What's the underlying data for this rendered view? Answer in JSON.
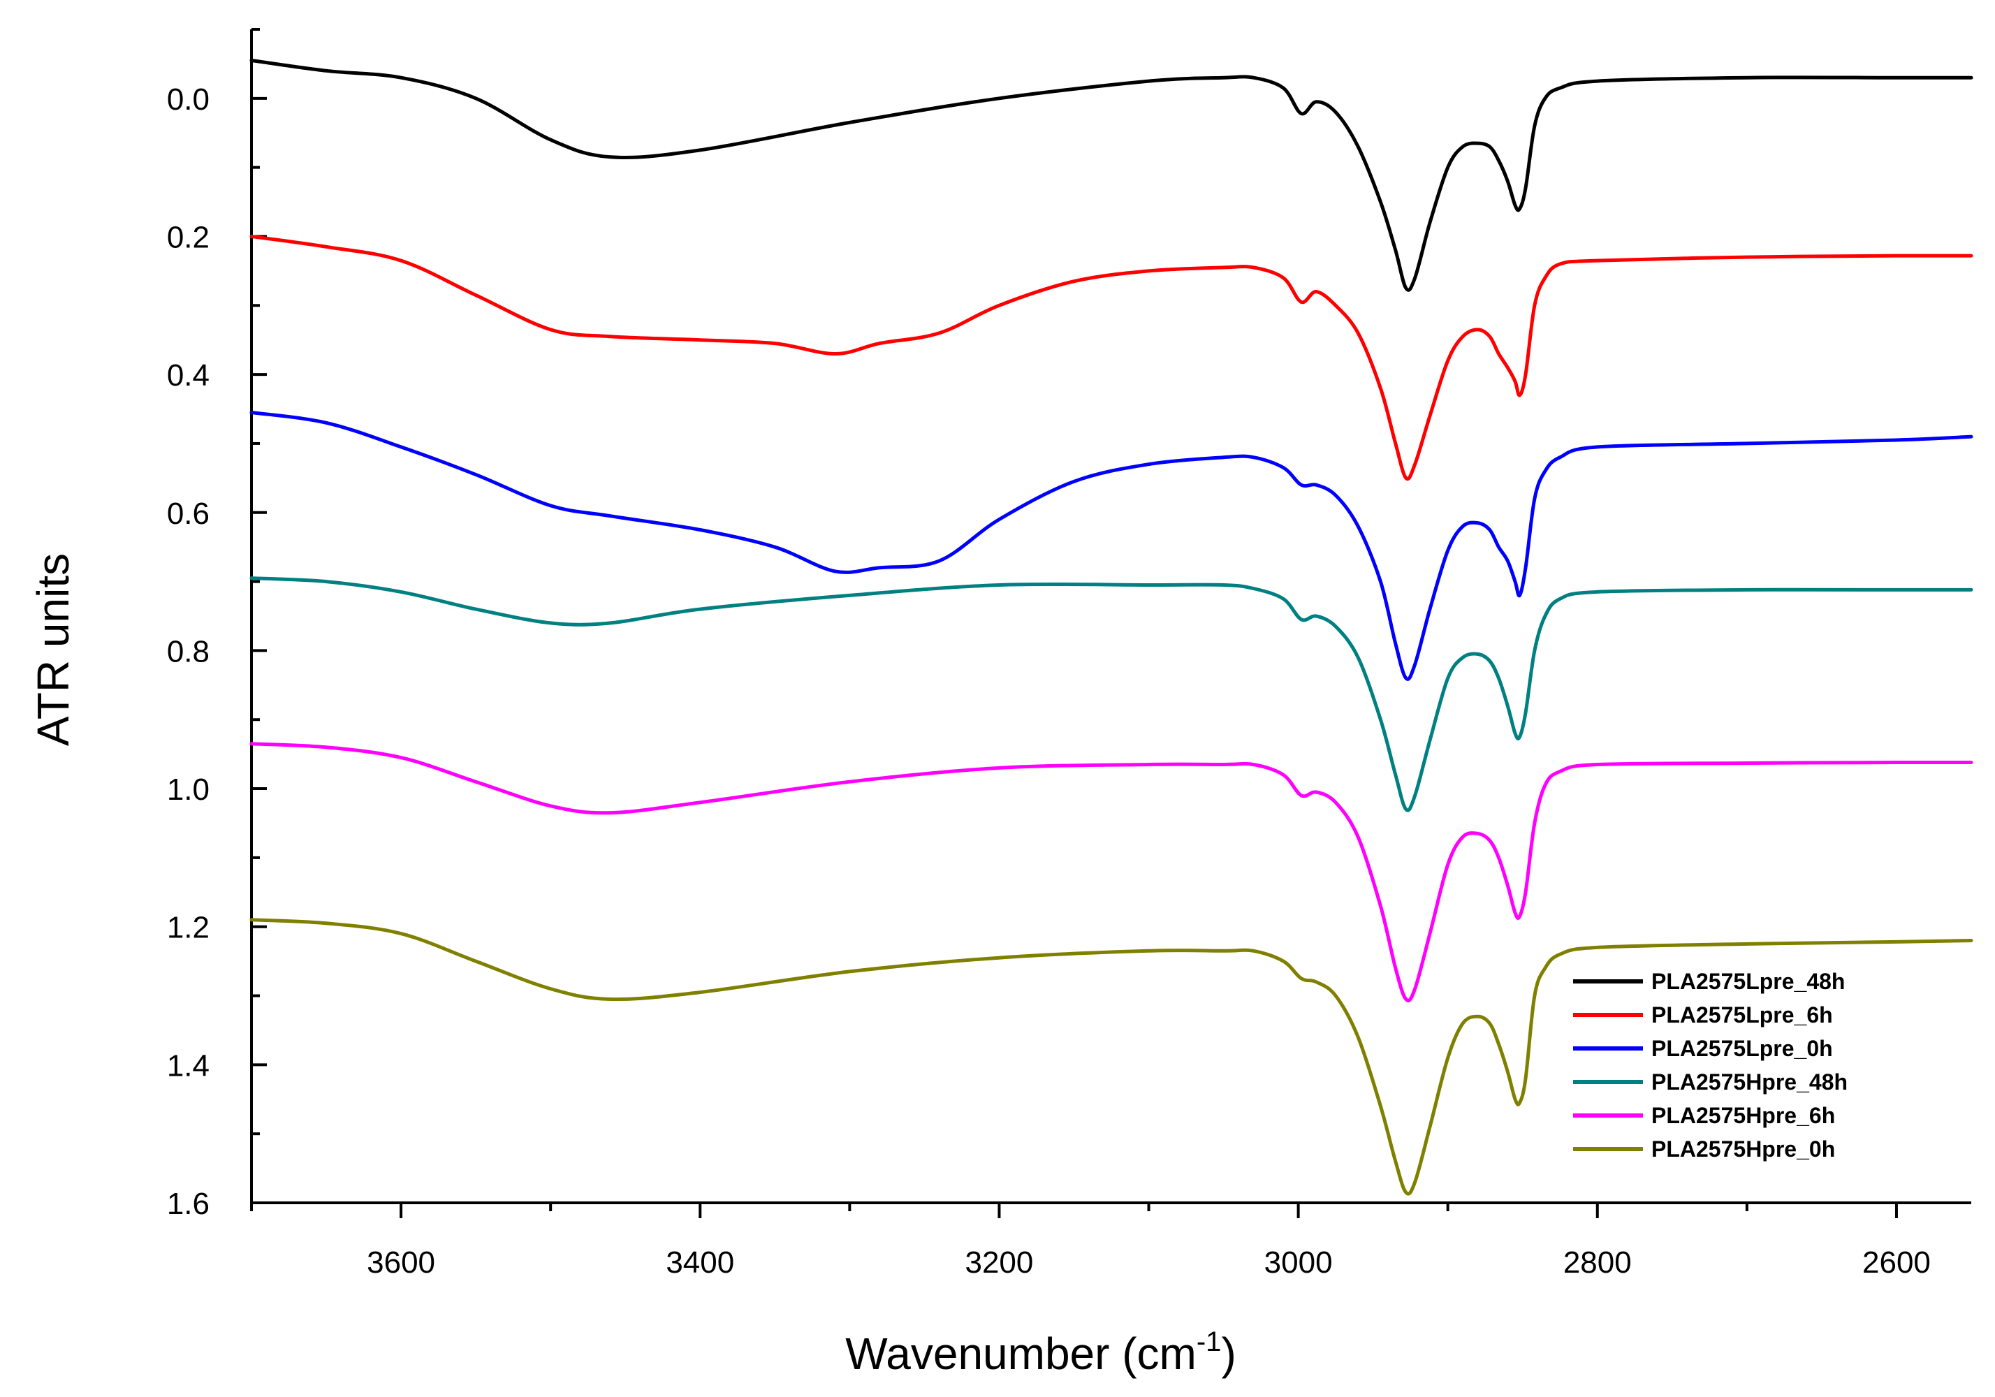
{
  "chart_data": {
    "type": "line",
    "title": "",
    "xlabel": "Wavenumber (cm",
    "xlabel_superscript": "-1",
    "xlabel_close": ")",
    "ylabel": "ATR units",
    "xlim": [
      3700,
      2550
    ],
    "ylim": [
      1.6,
      -0.1
    ],
    "y_inverted": true,
    "x_reversed": true,
    "x_ticks": [
      3600,
      3400,
      3200,
      3000,
      2800,
      2600
    ],
    "x_tick_labels": [
      "3600",
      "3400",
      "3200",
      "3000",
      "2800",
      "2600"
    ],
    "y_ticks": [
      0.0,
      0.2,
      0.4,
      0.6,
      0.8,
      1.0,
      1.2,
      1.4,
      1.6
    ],
    "y_tick_labels": [
      "0.0",
      "0.2",
      "0.4",
      "0.6",
      "0.8",
      "1.0",
      "1.2",
      "1.4",
      "1.6"
    ],
    "legend_position": "bottom-right",
    "series": [
      {
        "name": "PLA2575Lpre_48h",
        "color": "#000000",
        "x": [
          3700,
          3650,
          3600,
          3550,
          3500,
          3460,
          3400,
          3300,
          3200,
          3100,
          3050,
          3030,
          3010,
          2998,
          2988,
          2975,
          2960,
          2945,
          2935,
          2928,
          2922,
          2912,
          2900,
          2890,
          2880,
          2872,
          2866,
          2860,
          2855,
          2852,
          2848,
          2842,
          2835,
          2825,
          2800,
          2700,
          2600,
          2550
        ],
        "y": [
          -0.055,
          -0.04,
          -0.03,
          0.0,
          0.06,
          0.085,
          0.075,
          0.035,
          0.0,
          -0.025,
          -0.03,
          -0.03,
          -0.015,
          0.022,
          0.005,
          0.02,
          0.07,
          0.15,
          0.22,
          0.275,
          0.26,
          0.18,
          0.1,
          0.07,
          0.065,
          0.07,
          0.09,
          0.12,
          0.155,
          0.16,
          0.13,
          0.04,
          0.0,
          -0.015,
          -0.025,
          -0.03,
          -0.03,
          -0.03
        ]
      },
      {
        "name": "PLA2575Lpre_6h",
        "color": "#ff0000",
        "x": [
          3700,
          3650,
          3600,
          3550,
          3500,
          3460,
          3400,
          3350,
          3310,
          3280,
          3240,
          3200,
          3150,
          3100,
          3050,
          3030,
          3010,
          2998,
          2988,
          2975,
          2960,
          2945,
          2935,
          2928,
          2922,
          2912,
          2900,
          2890,
          2880,
          2872,
          2866,
          2860,
          2855,
          2852,
          2848,
          2842,
          2835,
          2825,
          2800,
          2700,
          2600,
          2550
        ],
        "y": [
          0.2,
          0.215,
          0.235,
          0.285,
          0.335,
          0.345,
          0.35,
          0.355,
          0.37,
          0.355,
          0.34,
          0.3,
          0.265,
          0.25,
          0.245,
          0.245,
          0.26,
          0.295,
          0.28,
          0.3,
          0.34,
          0.42,
          0.5,
          0.55,
          0.53,
          0.46,
          0.38,
          0.345,
          0.335,
          0.345,
          0.37,
          0.39,
          0.41,
          0.43,
          0.4,
          0.3,
          0.26,
          0.24,
          0.235,
          0.23,
          0.228,
          0.228
        ]
      },
      {
        "name": "PLA2575Lpre_0h",
        "color": "#0000ff",
        "x": [
          3700,
          3650,
          3600,
          3550,
          3500,
          3460,
          3400,
          3350,
          3310,
          3280,
          3240,
          3200,
          3150,
          3100,
          3050,
          3030,
          3010,
          2998,
          2988,
          2975,
          2960,
          2945,
          2935,
          2928,
          2922,
          2912,
          2900,
          2890,
          2880,
          2872,
          2866,
          2860,
          2855,
          2852,
          2848,
          2842,
          2835,
          2825,
          2800,
          2700,
          2600,
          2550
        ],
        "y": [
          0.455,
          0.47,
          0.505,
          0.545,
          0.59,
          0.605,
          0.625,
          0.65,
          0.685,
          0.68,
          0.67,
          0.61,
          0.555,
          0.53,
          0.52,
          0.52,
          0.535,
          0.56,
          0.56,
          0.575,
          0.62,
          0.7,
          0.79,
          0.84,
          0.82,
          0.74,
          0.655,
          0.62,
          0.615,
          0.625,
          0.65,
          0.67,
          0.7,
          0.72,
          0.68,
          0.58,
          0.54,
          0.52,
          0.505,
          0.5,
          0.495,
          0.49
        ]
      },
      {
        "name": "PLA2575Hpre_48h",
        "color": "#008080",
        "x": [
          3700,
          3650,
          3600,
          3550,
          3500,
          3460,
          3400,
          3300,
          3200,
          3100,
          3050,
          3030,
          3010,
          2998,
          2988,
          2975,
          2960,
          2945,
          2935,
          2928,
          2922,
          2912,
          2900,
          2890,
          2880,
          2872,
          2866,
          2860,
          2855,
          2852,
          2848,
          2842,
          2835,
          2825,
          2800,
          2700,
          2600,
          2550
        ],
        "y": [
          0.695,
          0.7,
          0.715,
          0.74,
          0.76,
          0.76,
          0.74,
          0.72,
          0.705,
          0.705,
          0.705,
          0.71,
          0.725,
          0.755,
          0.75,
          0.765,
          0.81,
          0.9,
          0.98,
          1.03,
          1.01,
          0.93,
          0.84,
          0.81,
          0.805,
          0.815,
          0.84,
          0.88,
          0.92,
          0.925,
          0.89,
          0.8,
          0.75,
          0.725,
          0.715,
          0.712,
          0.712,
          0.712
        ]
      },
      {
        "name": "PLA2575Hpre_6h",
        "color": "#ff00ff",
        "x": [
          3700,
          3650,
          3600,
          3550,
          3500,
          3460,
          3400,
          3300,
          3200,
          3100,
          3050,
          3030,
          3010,
          2998,
          2988,
          2975,
          2960,
          2945,
          2935,
          2928,
          2922,
          2912,
          2900,
          2890,
          2880,
          2872,
          2866,
          2860,
          2855,
          2852,
          2848,
          2842,
          2835,
          2825,
          2800,
          2700,
          2600,
          2550
        ],
        "y": [
          0.935,
          0.94,
          0.955,
          0.99,
          1.025,
          1.035,
          1.02,
          0.99,
          0.97,
          0.965,
          0.965,
          0.965,
          0.98,
          1.01,
          1.005,
          1.02,
          1.07,
          1.17,
          1.26,
          1.305,
          1.29,
          1.21,
          1.11,
          1.07,
          1.065,
          1.075,
          1.1,
          1.14,
          1.18,
          1.185,
          1.15,
          1.05,
          0.995,
          0.975,
          0.965,
          0.963,
          0.962,
          0.962
        ]
      },
      {
        "name": "PLA2575Hpre_0h",
        "color": "#808000",
        "x": [
          3700,
          3650,
          3600,
          3550,
          3500,
          3460,
          3400,
          3300,
          3200,
          3100,
          3050,
          3030,
          3010,
          2998,
          2988,
          2975,
          2960,
          2945,
          2935,
          2928,
          2922,
          2912,
          2900,
          2890,
          2880,
          2872,
          2866,
          2860,
          2855,
          2852,
          2848,
          2842,
          2835,
          2825,
          2800,
          2700,
          2600,
          2550
        ],
        "y": [
          1.19,
          1.195,
          1.21,
          1.25,
          1.29,
          1.305,
          1.295,
          1.265,
          1.245,
          1.235,
          1.235,
          1.235,
          1.25,
          1.275,
          1.28,
          1.3,
          1.36,
          1.46,
          1.54,
          1.585,
          1.57,
          1.49,
          1.39,
          1.34,
          1.33,
          1.34,
          1.37,
          1.41,
          1.45,
          1.455,
          1.42,
          1.3,
          1.26,
          1.24,
          1.23,
          1.225,
          1.222,
          1.22
        ]
      }
    ]
  }
}
